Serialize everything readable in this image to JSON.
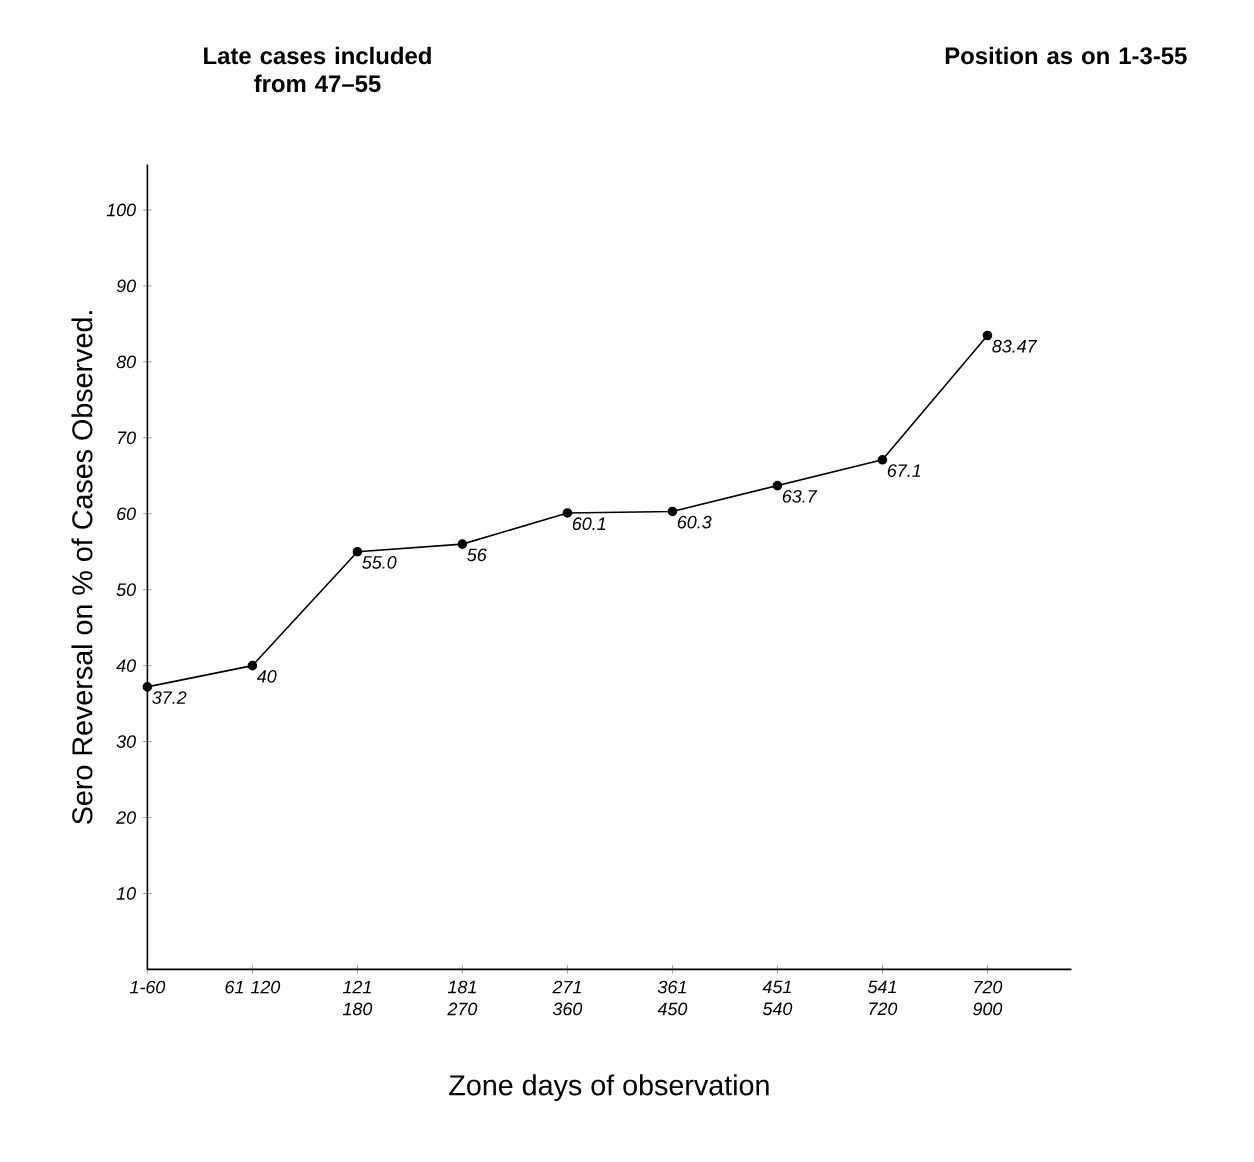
{
  "chart_data": {
    "type": "line",
    "xlabel": "Zone days of observation",
    "ylabel": "Sero Reversal on % of Cases Observed.",
    "annotations": [
      "Late cases included from 47–55",
      "Position as on 1-3-55"
    ],
    "categories": [
      "1-60",
      "61 120",
      "121 180",
      "181 270",
      "271 360",
      "361 450",
      "451 540",
      "541 720",
      "720 900"
    ],
    "values": [
      37.2,
      40,
      55.0,
      56,
      60.1,
      60.3,
      63.7,
      67.1,
      83.47
    ],
    "value_labels": [
      "37.2",
      "40",
      "55.0",
      "56",
      "60.1",
      "60.3",
      "63.7",
      "67.1",
      "83.47"
    ],
    "color": "#000000",
    "marker": "circle",
    "ylim": [
      0,
      106
    ],
    "yticks": [
      10,
      20,
      30,
      40,
      50,
      60,
      70,
      80,
      90,
      100
    ],
    "grid": false
  }
}
